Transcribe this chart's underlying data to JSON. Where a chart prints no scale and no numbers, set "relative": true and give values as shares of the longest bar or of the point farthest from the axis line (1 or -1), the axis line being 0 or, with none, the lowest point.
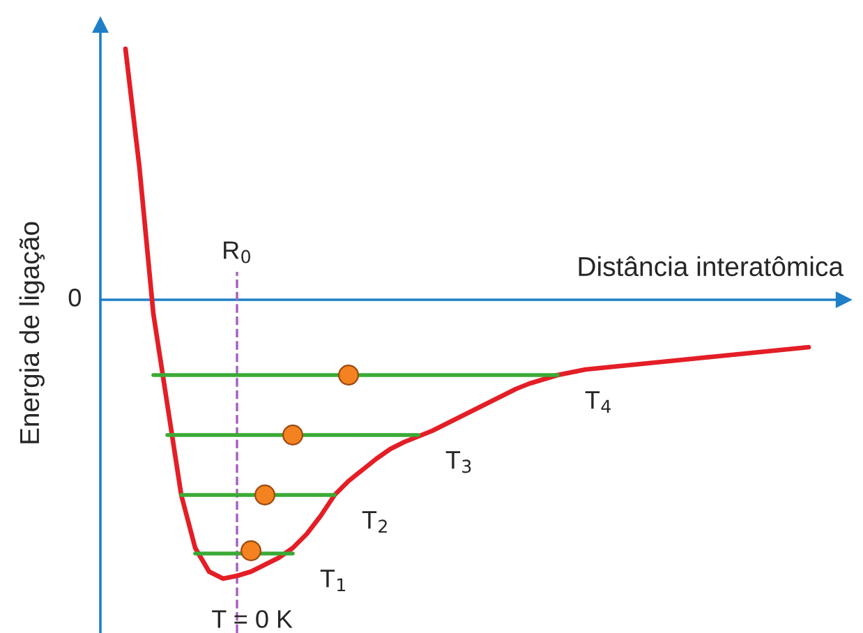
{
  "chart_data": {
    "type": "line",
    "relative": true,
    "legend": false,
    "xlabel": "Distância interatômica",
    "ylabel": "Energia de ligação",
    "categories": [
      null,
      null,
      null,
      null,
      null,
      null,
      null,
      null,
      null,
      null,
      null,
      null,
      null,
      null,
      null,
      null,
      null,
      null,
      null,
      null,
      null,
      null,
      null,
      null,
      null,
      null,
      null,
      null,
      null,
      null,
      null,
      null,
      null,
      null,
      null,
      null,
      null,
      null,
      null,
      null,
      null,
      null,
      null,
      null,
      null,
      null,
      null,
      null,
      null,
      null
    ],
    "series": [
      {
        "color": "#e41e26",
        "values": [
          0.9,
          0.475,
          -0.05,
          -0.375,
          -0.7,
          -0.89,
          -0.975,
          -1.0,
          -0.99,
          -0.975,
          -0.95,
          -0.925,
          -0.89,
          -0.84,
          -0.775,
          -0.7,
          -0.65,
          -0.61,
          -0.57,
          -0.535,
          -0.51,
          -0.49,
          -0.47,
          -0.445,
          -0.42,
          -0.395,
          -0.37,
          -0.345,
          -0.32,
          -0.3,
          -0.285,
          -0.27,
          -0.26,
          -0.25,
          -0.245,
          -0.24,
          -0.235,
          -0.23,
          -0.225,
          -0.22,
          -0.215,
          -0.21,
          -0.205,
          -0.2,
          -0.195,
          -0.19,
          -0.185,
          -0.18,
          -0.175,
          -0.17
        ]
      },
      {
        "name": "T$_{1}$",
        "color": "#3aaa35",
        "values": [
          null,
          null,
          null,
          null,
          null,
          -0.91,
          -0.91,
          -0.91,
          -0.91,
          -0.91,
          -0.91,
          -0.91,
          -0.91,
          null,
          null,
          null,
          null,
          null,
          null,
          null,
          null,
          null,
          null,
          null,
          null,
          null,
          null,
          null,
          null,
          null,
          null,
          null,
          null,
          null,
          null,
          null,
          null,
          null,
          null,
          null,
          null,
          null,
          null,
          null,
          null,
          null,
          null,
          null,
          null,
          null
        ]
      },
      {
        "name": "T$_{2}$",
        "color": "#3aaa35",
        "values": [
          null,
          null,
          null,
          null,
          -0.7,
          -0.7,
          -0.7,
          -0.7,
          -0.7,
          -0.7,
          -0.7,
          -0.7,
          -0.7,
          -0.7,
          -0.7,
          -0.7,
          null,
          null,
          null,
          null,
          null,
          null,
          null,
          null,
          null,
          null,
          null,
          null,
          null,
          null,
          null,
          null,
          null,
          null,
          null,
          null,
          null,
          null,
          null,
          null,
          null,
          null,
          null,
          null,
          null,
          null,
          null,
          null,
          null,
          null
        ]
      },
      {
        "name": "T$_{3}$",
        "color": "#3aaa35",
        "values": [
          null,
          null,
          null,
          -0.485,
          -0.485,
          -0.485,
          -0.485,
          -0.485,
          -0.485,
          -0.485,
          -0.485,
          -0.485,
          -0.485,
          -0.485,
          -0.485,
          -0.485,
          -0.485,
          -0.485,
          -0.485,
          -0.485,
          -0.485,
          -0.485,
          null,
          null,
          null,
          null,
          null,
          null,
          null,
          null,
          null,
          null,
          null,
          null,
          null,
          null,
          null,
          null,
          null,
          null,
          null,
          null,
          null,
          null,
          null,
          null,
          null,
          null,
          null,
          null
        ]
      },
      {
        "name": "T$_{4}$",
        "color": "#3aaa35",
        "values": [
          null,
          null,
          -0.27,
          -0.27,
          -0.27,
          -0.27,
          -0.27,
          -0.27,
          -0.27,
          -0.27,
          -0.27,
          -0.27,
          -0.27,
          -0.27,
          -0.27,
          -0.27,
          -0.27,
          -0.27,
          -0.27,
          -0.27,
          -0.27,
          -0.27,
          -0.27,
          -0.27,
          -0.27,
          -0.27,
          -0.27,
          -0.27,
          -0.27,
          -0.27,
          -0.27,
          -0.27,
          null,
          null,
          null,
          null,
          null,
          null,
          null,
          null,
          null,
          null,
          null,
          null,
          null,
          null,
          null,
          null,
          null,
          null
        ]
      },
      {
        "color": "#f58220",
        "marker": "circle",
        "values": [
          null,
          null,
          null,
          null,
          null,
          null,
          null,
          null,
          null,
          -0.9,
          null,
          null,
          null,
          null,
          null,
          null,
          null,
          null,
          null,
          null,
          null,
          null,
          null,
          null,
          null,
          null,
          null,
          null,
          null,
          null,
          null,
          null,
          null,
          null,
          null,
          null,
          null,
          null,
          null,
          null,
          null,
          null,
          null,
          null,
          null,
          null,
          null,
          null,
          null,
          null
        ]
      },
      {
        "color": "#f58220",
        "marker": "circle",
        "values": [
          null,
          null,
          null,
          null,
          null,
          null,
          null,
          null,
          null,
          null,
          -0.7,
          null,
          null,
          null,
          null,
          null,
          null,
          null,
          null,
          null,
          null,
          null,
          null,
          null,
          null,
          null,
          null,
          null,
          null,
          null,
          null,
          null,
          null,
          null,
          null,
          null,
          null,
          null,
          null,
          null,
          null,
          null,
          null,
          null,
          null,
          null,
          null,
          null,
          null,
          null
        ]
      },
      {
        "color": "#f58220",
        "marker": "circle",
        "values": [
          null,
          null,
          null,
          null,
          null,
          null,
          null,
          null,
          null,
          null,
          null,
          null,
          -0.485,
          null,
          null,
          null,
          null,
          null,
          null,
          null,
          null,
          null,
          null,
          null,
          null,
          null,
          null,
          null,
          null,
          null,
          null,
          null,
          null,
          null,
          null,
          null,
          null,
          null,
          null,
          null,
          null,
          null,
          null,
          null,
          null,
          null,
          null,
          null,
          null,
          null
        ]
      },
      {
        "color": "#f58220",
        "marker": "circle",
        "values": [
          null,
          null,
          null,
          null,
          null,
          null,
          null,
          null,
          null,
          null,
          null,
          null,
          null,
          null,
          null,
          null,
          -0.27,
          null,
          null,
          null,
          null,
          null,
          null,
          null,
          null,
          null,
          null,
          null,
          null,
          null,
          null,
          null,
          null,
          null,
          null,
          null,
          null,
          null,
          null,
          null,
          null,
          null,
          null,
          null,
          null,
          null,
          null,
          null,
          null,
          null
        ]
      }
    ],
    "ref_lines": [
      {
        "axis": "y",
        "value": 0,
        "label": "0",
        "color": "#1f7fc8"
      }
    ],
    "annotations": [
      "R$_{0}$",
      "T = 0 K"
    ]
  }
}
